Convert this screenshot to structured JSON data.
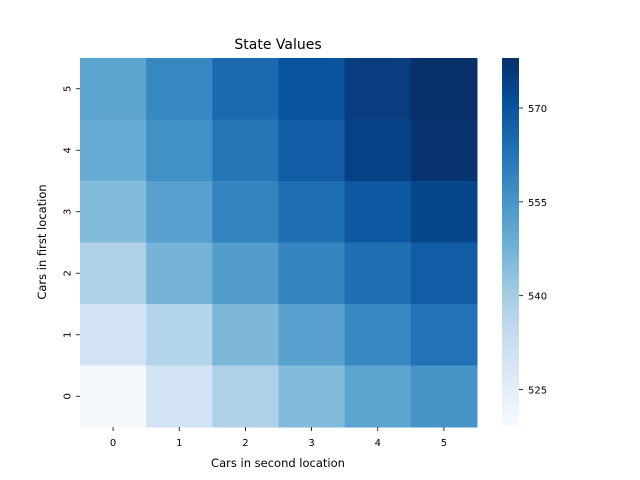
{
  "chart_data": {
    "type": "heatmap",
    "title": "State Values",
    "xlabel": "Cars in second location",
    "ylabel": "Cars in first location",
    "x_categories": [
      "0",
      "1",
      "2",
      "3",
      "4",
      "5"
    ],
    "y_categories": [
      "5",
      "4",
      "3",
      "2",
      "1",
      "0"
    ],
    "values": [
      [
        551,
        558,
        565,
        570,
        575,
        578
      ],
      [
        549,
        556,
        562,
        568,
        574,
        577
      ],
      [
        545,
        552,
        559,
        564,
        569,
        573
      ],
      [
        538,
        547,
        553,
        559,
        564,
        568
      ],
      [
        530,
        537,
        546,
        552,
        558,
        563
      ],
      [
        520,
        530,
        538,
        545,
        551,
        555
      ]
    ],
    "vmin": 519,
    "vmax": 578,
    "colormap": "Blues",
    "colorbar_ticks": [
      525,
      540,
      555,
      570
    ],
    "colorbar_tick_labels": [
      "525",
      "540",
      "555",
      "570"
    ]
  }
}
